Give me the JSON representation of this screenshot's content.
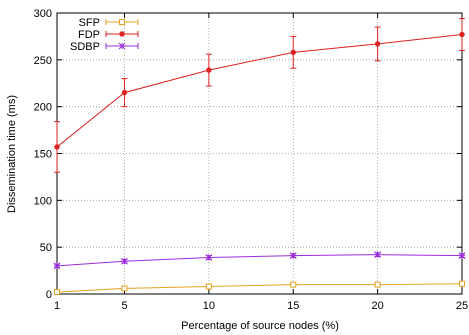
{
  "chart_data": {
    "type": "line",
    "xlabel": "Percentage of source nodes (%)",
    "ylabel": "Dissemination time (ms)",
    "x": [
      1,
      5,
      10,
      15,
      20,
      25
    ],
    "xlim": [
      1,
      25
    ],
    "ylim": [
      0,
      300
    ],
    "xticks": [
      "1",
      "5",
      "10",
      "15",
      "20",
      "25"
    ],
    "yticks": [
      "0",
      "50",
      "100",
      "150",
      "200",
      "250",
      "300"
    ],
    "grid": true,
    "legend_position": "top-left",
    "series": [
      {
        "name": "SFP",
        "color": "#e6a020",
        "marker": "open-square",
        "values": [
          2,
          6,
          8,
          10,
          10,
          11
        ],
        "errors": [
          1,
          1,
          1,
          1,
          1,
          1
        ]
      },
      {
        "name": "FDP",
        "color": "#dd2222",
        "marker": "filled-circle",
        "values": [
          157,
          215,
          239,
          258,
          267,
          277
        ],
        "errors": [
          27,
          15,
          17,
          17,
          18,
          17
        ]
      },
      {
        "name": "SDBP",
        "color": "#9a2edb",
        "marker": "star",
        "values": [
          30,
          35,
          39,
          41,
          42,
          41
        ],
        "errors": [
          2,
          2,
          2,
          2,
          2,
          2
        ]
      }
    ]
  }
}
